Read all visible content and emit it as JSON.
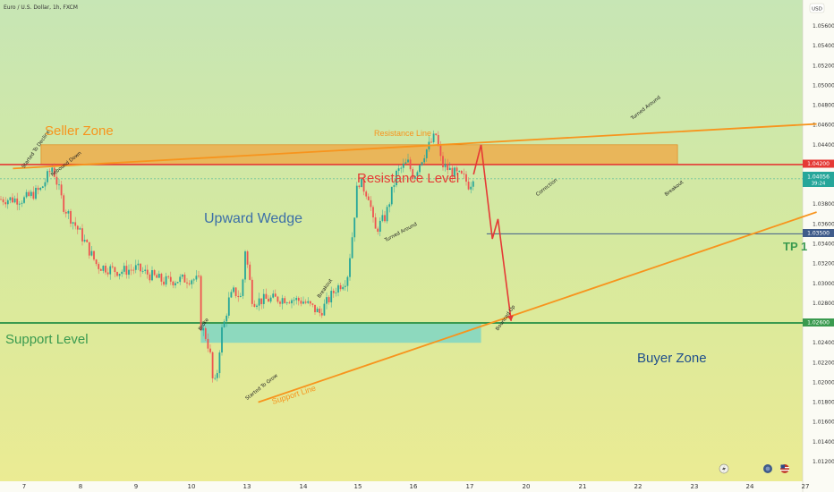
{
  "header": {
    "symbol_title": "Euro / U.S. Dollar, 1h, FXCM",
    "currency": "USD"
  },
  "labels": {
    "seller_zone": "Seller Zone",
    "buyer_zone": "Buyer Zone",
    "resistance_line": "Resistance Line",
    "resistance_level": "Resistance Level",
    "support_level": "Support Level",
    "support_line": "Support Line",
    "upward_wedge": "Upward Wedge",
    "tp1": "TP 1"
  },
  "annotations": [
    {
      "text": "Started To Decline",
      "at": [
        "7",
        1.0416
      ]
    },
    {
      "text": "Rebound Down",
      "at": [
        "7.5",
        1.0408
      ]
    },
    {
      "text": "Broke",
      "at": [
        "10.5",
        1.0252
      ]
    },
    {
      "text": "Started To Grow",
      "at": [
        "13",
        1.0182
      ]
    },
    {
      "text": "Breakout",
      "at": [
        "14.3",
        1.0285
      ]
    },
    {
      "text": "Turned Around",
      "at": [
        "15.5",
        1.0342
      ]
    },
    {
      "text": "Bounced Up",
      "at": [
        "18.5",
        1.0252
      ]
    },
    {
      "text": "Correction",
      "at": [
        "20.2",
        1.0388
      ]
    },
    {
      "text": "Turned Around",
      "at": [
        "21.9",
        1.0465
      ]
    },
    {
      "text": "Breakout",
      "at": [
        "22.5",
        1.0388
      ]
    }
  ],
  "price_tags": {
    "resistance": "1.04200",
    "current": "1.04056",
    "timer": "39:24",
    "tp1": "1.03500",
    "support": "1.02600"
  },
  "colors": {
    "orange": "#f7941d",
    "red": "#e53935",
    "green": "#3a9a4f",
    "teal_zone": "#7fd6c4",
    "blue_tag": "#3f5b8a",
    "up_candle": "#26a69a",
    "down_candle": "#ef5350",
    "wedge_text": "#3c6fa8"
  },
  "chart_data": {
    "type": "candlestick",
    "title": "Euro / U.S. Dollar, 1h, FXCM",
    "y_unit": "USD",
    "ylim": [
      1.011,
      1.058
    ],
    "y_ticks": [
      "1.05600",
      "1.05400",
      "1.05200",
      "1.05000",
      "1.04800",
      "1.04600",
      "1.04400",
      "1.04200",
      "1.04000",
      "1.03800",
      "1.03600",
      "1.03400",
      "1.03200",
      "1.03000",
      "1.02800",
      "1.02600",
      "1.02400",
      "1.02200",
      "1.02000",
      "1.01800",
      "1.01600",
      "1.01400",
      "1.01200"
    ],
    "x_ticks": [
      "7",
      "8",
      "9",
      "10",
      "13",
      "14",
      "15",
      "16",
      "17",
      "20",
      "21",
      "22",
      "23",
      "24",
      "27"
    ],
    "price_path": [
      [
        "7",
        1.0385
      ],
      [
        "7.3",
        1.0395
      ],
      [
        "7.5",
        1.0418
      ],
      [
        "7.7",
        1.0378
      ],
      [
        "8",
        1.035
      ],
      [
        "8.3",
        1.0318
      ],
      [
        "8.7",
        1.0312
      ],
      [
        "9",
        1.0315
      ],
      [
        "9.5",
        1.0302
      ],
      [
        "10",
        1.0305
      ],
      [
        "10.4",
        1.0302
      ],
      [
        "10.5",
        1.0258
      ],
      [
        "10.8",
        1.0245
      ],
      [
        "11",
        1.023
      ],
      [
        "11.2",
        1.0192
      ],
      [
        "11.4",
        1.0212
      ],
      [
        "11.6",
        1.025
      ],
      [
        "11.8",
        1.0262
      ],
      [
        "12",
        1.0282
      ],
      [
        "12.3",
        1.0292
      ],
      [
        "12.7",
        1.0285
      ],
      [
        "12.9",
        1.0335
      ],
      [
        "13.1",
        1.0282
      ],
      [
        "13.4",
        1.0284
      ],
      [
        "13.7",
        1.0285
      ],
      [
        "14",
        1.0282
      ],
      [
        "14.3",
        1.027
      ],
      [
        "14.6",
        1.0295
      ],
      [
        "14.8",
        1.0305
      ],
      [
        "14.9",
        1.035
      ],
      [
        "15",
        1.0405
      ],
      [
        "15.2",
        1.0388
      ],
      [
        "15.3",
        1.0352
      ],
      [
        "15.5",
        1.0368
      ],
      [
        "15.7",
        1.0412
      ],
      [
        "15.9",
        1.0422
      ],
      [
        "16",
        1.0408
      ],
      [
        "16.2",
        1.0432
      ],
      [
        "16.4",
        1.045
      ],
      [
        "16.5",
        1.042
      ],
      [
        "16.7",
        1.0412
      ],
      [
        "16.9",
        1.0406
      ],
      [
        "17",
        1.0398
      ],
      [
        "17.1",
        1.0405
      ],
      [
        "17.2",
        1.041
      ]
    ],
    "levels": {
      "resistance": 1.042,
      "support": 1.026,
      "tp1": 1.035
    },
    "zones": {
      "seller_zone": {
        "x": [
          "7.3",
          "22.7"
        ],
        "y": [
          1.042,
          1.044
        ]
      },
      "buyer_zone": {
        "x": [
          "10.5",
          "17.6"
        ],
        "y": [
          1.024,
          1.026
        ]
      }
    },
    "trendlines": {
      "resistance_line": {
        "from": [
          "6.8",
          1.0416
        ],
        "to": [
          "27.2",
          1.0461
        ]
      },
      "support_line": {
        "from": [
          "13.2",
          1.018
        ],
        "to": [
          "27.2",
          1.0372
        ]
      }
    },
    "projection": [
      [
        "17.2",
        1.041
      ],
      [
        "17.6",
        1.044
      ],
      [
        "18.2",
        1.0345
      ],
      [
        "18.5",
        1.0365
      ],
      [
        "19.2",
        1.0262
      ]
    ]
  }
}
